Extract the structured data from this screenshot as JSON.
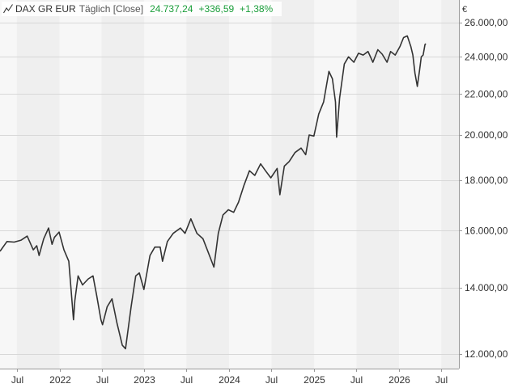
{
  "header": {
    "symbol": "DAX GR EUR",
    "period": "Täglich [Close]",
    "last": "24.737,24",
    "change": "+336,59",
    "change_pct": "+1,38%",
    "up_color": "#1a9e3a",
    "icon": "line-chart-icon"
  },
  "chart_data": {
    "type": "line",
    "title": "DAX GR EUR",
    "ylabel": "€",
    "y_scale": "log",
    "ylim": [
      11600,
      27400
    ],
    "xlim": [
      "2021-04-20",
      "2026-09-15"
    ],
    "y_ticks": [
      12000,
      14000,
      16000,
      18000,
      20000,
      22000,
      24000,
      26000
    ],
    "y_tick_labels": [
      "12.000,00",
      "14.000,00",
      "16.000,00",
      "18.000,00",
      "20.000,00",
      "22.000,00",
      "24.000,00",
      "26.000,00"
    ],
    "x_ticks": [
      {
        "date": "2021-07-01",
        "label": "Jul"
      },
      {
        "date": "2022-01-01",
        "label": "2022"
      },
      {
        "date": "2022-07-01",
        "label": "Jul"
      },
      {
        "date": "2023-01-01",
        "label": "2023"
      },
      {
        "date": "2023-07-01",
        "label": "Jul"
      },
      {
        "date": "2024-01-01",
        "label": "2024"
      },
      {
        "date": "2024-07-01",
        "label": "Jul"
      },
      {
        "date": "2025-01-01",
        "label": "2025"
      },
      {
        "date": "2025-07-01",
        "label": "Jul"
      },
      {
        "date": "2026-01-01",
        "label": "2026"
      },
      {
        "date": "2026-07-01",
        "label": "Jul"
      }
    ],
    "grid": true,
    "line_color": "#333333",
    "series": [
      {
        "x": [
          "2021-04-20",
          "2021-05-20",
          "2021-06-20",
          "2021-07-20",
          "2021-08-15",
          "2021-09-10",
          "2021-09-25",
          "2021-10-05",
          "2021-10-25",
          "2021-11-15",
          "2021-11-30",
          "2021-12-10",
          "2021-12-30",
          "2022-01-20",
          "2022-02-10",
          "2022-03-02",
          "2022-03-08",
          "2022-03-22",
          "2022-04-10",
          "2022-05-05",
          "2022-05-25",
          "2022-06-10",
          "2022-06-28",
          "2022-07-05",
          "2022-07-25",
          "2022-08-15",
          "2022-09-05",
          "2022-09-28",
          "2022-10-12",
          "2022-11-05",
          "2022-11-25",
          "2022-12-10",
          "2022-12-30",
          "2023-01-25",
          "2023-02-15",
          "2023-03-10",
          "2023-03-20",
          "2023-04-10",
          "2023-05-05",
          "2023-06-05",
          "2023-06-25",
          "2023-07-20",
          "2023-08-15",
          "2023-09-10",
          "2023-10-01",
          "2023-10-20",
          "2023-10-27",
          "2023-11-15",
          "2023-12-05",
          "2023-12-28",
          "2024-01-20",
          "2024-02-10",
          "2024-03-05",
          "2024-03-28",
          "2024-04-20",
          "2024-05-15",
          "2024-06-05",
          "2024-06-28",
          "2024-07-25",
          "2024-08-06",
          "2024-08-25",
          "2024-09-15",
          "2024-10-10",
          "2024-11-05",
          "2024-11-25",
          "2024-12-10",
          "2024-12-30",
          "2025-01-20",
          "2025-02-10",
          "2025-03-05",
          "2025-03-20",
          "2025-04-02",
          "2025-04-07",
          "2025-04-20",
          "2025-05-10",
          "2025-05-28",
          "2025-06-20",
          "2025-07-10",
          "2025-07-30",
          "2025-08-20",
          "2025-09-10",
          "2025-10-01",
          "2025-10-20",
          "2025-11-10",
          "2025-11-25",
          "2025-12-15",
          "2026-01-05",
          "2026-01-20",
          "2026-02-05",
          "2026-02-20",
          "2026-03-01",
          "2026-03-10",
          "2026-03-20",
          "2026-03-30",
          "2026-04-06",
          "2026-04-14",
          "2026-04-22",
          "2026-04-26"
        ],
        "y": [
          15250,
          15600,
          15580,
          15650,
          15800,
          15300,
          15450,
          15100,
          15700,
          16100,
          15500,
          15750,
          15950,
          15300,
          14900,
          13000,
          13600,
          14400,
          14100,
          14300,
          14400,
          13750,
          13000,
          12850,
          13400,
          13650,
          12900,
          12250,
          12150,
          13400,
          14400,
          14500,
          13950,
          15100,
          15400,
          15400,
          14900,
          15600,
          15900,
          16100,
          15900,
          16450,
          15900,
          15700,
          15250,
          14850,
          14700,
          15900,
          16600,
          16800,
          16700,
          17100,
          17800,
          18400,
          18200,
          18700,
          18400,
          18100,
          18500,
          17400,
          18600,
          18800,
          19200,
          19400,
          19100,
          20000,
          19950,
          21000,
          21600,
          23200,
          22800,
          21600,
          19900,
          21800,
          23600,
          24000,
          23700,
          24200,
          24100,
          24300,
          23700,
          24400,
          24150,
          23700,
          24300,
          24100,
          24600,
          25100,
          25200,
          24600,
          24100,
          23100,
          22400,
          23300,
          24000,
          24100,
          24700,
          24737
        ]
      }
    ]
  }
}
